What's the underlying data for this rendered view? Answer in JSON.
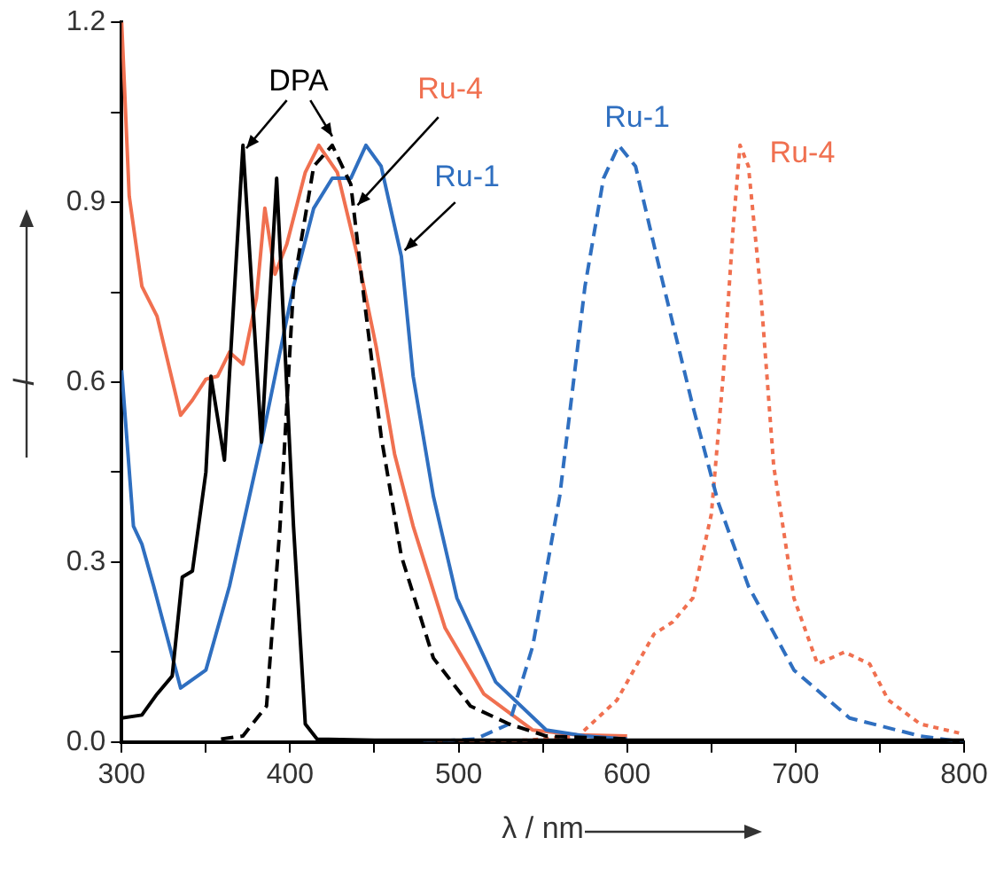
{
  "chart_data": {
    "type": "line",
    "xlabel": "λ / nm",
    "ylabel": "I",
    "xlim": [
      300,
      800
    ],
    "xticks": [
      300,
      {
        "value": 350,
        "label": null
      },
      400,
      {
        "value": 450,
        "label": null
      },
      500,
      {
        "value": 550,
        "label": null
      },
      600,
      {
        "value": 650,
        "label": null
      },
      700,
      {
        "value": 750,
        "label": null
      },
      800
    ],
    "ylim": [
      0,
      1.2
    ],
    "yticks": [
      {
        "value": 0,
        "label": "0.0"
      },
      {
        "value": 0.15,
        "label": null
      },
      {
        "value": 0.3,
        "label": "0.3"
      },
      {
        "value": 0.45,
        "label": null
      },
      {
        "value": 0.6,
        "label": "0.6"
      },
      {
        "value": 0.75,
        "label": null
      },
      {
        "value": 0.9,
        "label": "0.9"
      },
      {
        "value": 1.05,
        "label": null
      },
      {
        "value": 1.2,
        "label": "1.2"
      }
    ],
    "grid": false,
    "legend": false,
    "marker": "none",
    "series": [
      {
        "color": "#000000",
        "line_style": "solid",
        "x": [
          300,
          312,
          321,
          330,
          336,
          342,
          350,
          353,
          361,
          372,
          383,
          392,
          402,
          409,
          416,
          450,
          500,
          550,
          600,
          650,
          700,
          750,
          800
        ],
        "values": [
          0.04,
          0.045,
          0.08,
          0.11,
          0.275,
          0.285,
          0.45,
          0.61,
          0.47,
          0.995,
          0.5,
          0.94,
          0.36,
          0.03,
          0.005,
          0.003,
          0.003,
          0.003,
          0.003,
          0.003,
          0.003,
          0.003,
          0.003
        ]
      },
      {
        "color": "#000000",
        "line_style": "dashed",
        "x": [
          359,
          372,
          386,
          394,
          402,
          414,
          425,
          436,
          443,
          454,
          466,
          485,
          507,
          530,
          552,
          600
        ],
        "values": [
          0.005,
          0.01,
          0.06,
          0.36,
          0.76,
          0.96,
          0.995,
          0.93,
          0.76,
          0.51,
          0.31,
          0.14,
          0.06,
          0.03,
          0.01,
          0.005
        ]
      },
      {
        "color": "#2f6fc0",
        "line_style": "solid",
        "x": [
          300,
          307,
          312,
          319,
          335,
          350,
          364,
          383,
          402,
          414,
          425,
          436,
          445,
          454,
          466,
          473,
          485,
          499,
          522,
          552,
          575,
          600
        ],
        "values": [
          0.62,
          0.36,
          0.33,
          0.26,
          0.09,
          0.12,
          0.26,
          0.5,
          0.76,
          0.89,
          0.94,
          0.94,
          0.995,
          0.96,
          0.81,
          0.61,
          0.41,
          0.24,
          0.1,
          0.02,
          0.01,
          0.005
        ]
      },
      {
        "color": "#2f6fc0",
        "line_style": "dashed",
        "x": [
          479,
          510,
          530,
          544,
          560,
          575,
          586,
          595,
          605,
          620,
          639,
          654,
          672,
          699,
          732,
          774,
          800
        ],
        "values": [
          0,
          0.005,
          0.03,
          0.16,
          0.41,
          0.76,
          0.94,
          0.995,
          0.96,
          0.78,
          0.56,
          0.4,
          0.26,
          0.12,
          0.04,
          0.01,
          0
        ]
      },
      {
        "color": "#f07050",
        "line_style": "solid",
        "x": [
          300,
          304.5,
          312,
          321,
          335,
          342,
          350,
          357,
          364,
          372,
          380,
          385,
          391,
          398,
          409,
          417,
          428,
          440,
          451,
          462,
          473,
          492,
          515,
          544,
          570,
          600
        ],
        "values": [
          1.2,
          0.91,
          0.76,
          0.71,
          0.545,
          0.57,
          0.605,
          0.61,
          0.65,
          0.63,
          0.74,
          0.89,
          0.78,
          0.83,
          0.95,
          0.995,
          0.95,
          0.81,
          0.66,
          0.48,
          0.36,
          0.19,
          0.08,
          0.02,
          0.012,
          0.01
        ]
      },
      {
        "color": "#f07050",
        "line_style": "dotted",
        "x": [
          481,
          540,
          571,
          594,
          616,
          627,
          639,
          650,
          657,
          663,
          667,
          672,
          679,
          687,
          699,
          713,
          729,
          744,
          755,
          774,
          797
        ],
        "values": [
          0,
          0.003,
          0.01,
          0.07,
          0.18,
          0.2,
          0.24,
          0.38,
          0.61,
          0.86,
          0.995,
          0.96,
          0.76,
          0.46,
          0.24,
          0.13,
          0.15,
          0.13,
          0.07,
          0.03,
          0.015
        ]
      }
    ],
    "annotations": [
      {
        "text": "DPA",
        "x": 374,
        "y": 0.99
      },
      {
        "text": "Ru-4",
        "x": 440,
        "y": 0.895
      },
      {
        "text": "Ru-1",
        "x": 468,
        "y": 0.82
      },
      "Ru-1",
      "Ru-4"
    ]
  }
}
